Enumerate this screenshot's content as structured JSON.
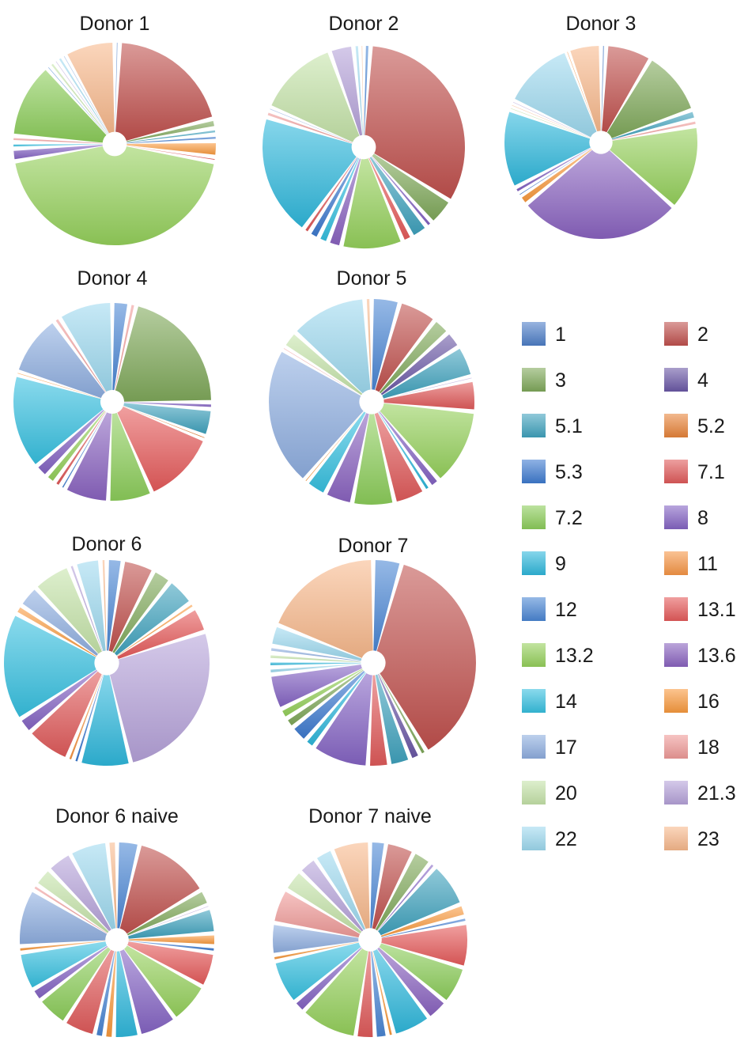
{
  "chart_data": {
    "type": "pie",
    "categories": [
      "1",
      "2",
      "3",
      "4",
      "5.1",
      "5.2",
      "5.3",
      "7.1",
      "7.2",
      "8",
      "9",
      "11",
      "12",
      "13.1",
      "13.2",
      "13.6",
      "14",
      "16",
      "17",
      "18",
      "20",
      "21.3",
      "22",
      "23"
    ],
    "colors": {
      "1": "#4d7ec7",
      "2": "#c0504d",
      "3": "#7fa85a",
      "4": "#6b58a6",
      "5.1": "#3fa2bd",
      "5.2": "#e8843a",
      "5.3": "#3e7bd0",
      "7.1": "#e05a5a",
      "7.2": "#8ccd5a",
      "8": "#8564c4",
      "9": "#2fb8dc",
      "11": "#f79646",
      "12": "#4a86d4",
      "13.1": "#e55a5a",
      "13.2": "#95d15b",
      "13.6": "#8a63c0",
      "14": "#36c0e0",
      "16": "#f99a3e",
      "17": "#8eaee0",
      "18": "#ef9a98",
      "20": "#c5e3a8",
      "21.3": "#b5a2d9",
      "22": "#9ed9ef",
      "23": "#f8b98c"
    },
    "legend": {
      "placement": "right",
      "entries": [
        "1",
        "2",
        "3",
        "4",
        "5.1",
        "5.2",
        "5.3",
        "7.1",
        "7.2",
        "8",
        "9",
        "11",
        "12",
        "13.1",
        "13.2",
        "13.6",
        "14",
        "16",
        "17",
        "18",
        "20",
        "21.3",
        "22",
        "23"
      ]
    },
    "pies": [
      {
        "title": "Donor 1",
        "slices": [
          {
            "label": "1",
            "value": 0.8
          },
          {
            "label": "2",
            "value": 20
          },
          {
            "label": "3",
            "value": 1.5
          },
          {
            "label": "5.1",
            "value": 1
          },
          {
            "label": "5.3",
            "value": 1
          },
          {
            "label": "16",
            "value": 2.5
          },
          {
            "label": "13.1",
            "value": 0.8
          },
          {
            "label": "13.2",
            "value": 44
          },
          {
            "label": "8",
            "value": 2
          },
          {
            "label": "14",
            "value": 1
          },
          {
            "label": "18",
            "value": 1
          },
          {
            "label": "7.2",
            "value": 12
          },
          {
            "label": "12",
            "value": 0.5
          },
          {
            "label": "20",
            "value": 1
          },
          {
            "label": "21.3",
            "value": 0.5
          },
          {
            "label": "22",
            "value": 1
          },
          {
            "label": "17",
            "value": 0.5
          },
          {
            "label": "23",
            "value": 8
          }
        ]
      },
      {
        "title": "Donor 2",
        "slices": [
          {
            "label": "12",
            "value": 1
          },
          {
            "label": "2",
            "value": 30
          },
          {
            "label": "3",
            "value": 4
          },
          {
            "label": "8",
            "value": 1
          },
          {
            "label": "5.1",
            "value": 2.5
          },
          {
            "label": "13.1",
            "value": 1.5
          },
          {
            "label": "13.2",
            "value": 9
          },
          {
            "label": "13.6",
            "value": 2
          },
          {
            "label": "14",
            "value": 1.5
          },
          {
            "label": "5.3",
            "value": 1.5
          },
          {
            "label": "7.1",
            "value": 1
          },
          {
            "label": "9",
            "value": 18
          },
          {
            "label": "18",
            "value": 1
          },
          {
            "label": "17",
            "value": 0.5
          },
          {
            "label": "20",
            "value": 12
          },
          {
            "label": "21.3",
            "value": 3.5
          },
          {
            "label": "22",
            "value": 1
          },
          {
            "label": "23",
            "value": 0.5
          }
        ]
      },
      {
        "title": "Donor 3",
        "slices": [
          {
            "label": "1",
            "value": 0.8
          },
          {
            "label": "2",
            "value": 7
          },
          {
            "label": "3",
            "value": 10
          },
          {
            "label": "5.1",
            "value": 1.5
          },
          {
            "label": "18",
            "value": 1
          },
          {
            "label": "13.2",
            "value": 13
          },
          {
            "label": "13.6",
            "value": 25
          },
          {
            "label": "16",
            "value": 1.5
          },
          {
            "label": "5.3",
            "value": 0.5
          },
          {
            "label": "8",
            "value": 1
          },
          {
            "label": "9",
            "value": 12
          },
          {
            "label": "20",
            "value": 0.5
          },
          {
            "label": "23",
            "value": 0.5
          },
          {
            "label": "21.3",
            "value": 0.5
          },
          {
            "label": "22",
            "value": 11
          },
          {
            "label": "11",
            "value": 0.3
          },
          {
            "label": "23",
            "value": 5
          }
        ]
      },
      {
        "title": "Donor 4",
        "slices": [
          {
            "label": "12",
            "value": 2.5
          },
          {
            "label": "18",
            "value": 1
          },
          {
            "label": "3",
            "value": 19
          },
          {
            "label": "8",
            "value": 1
          },
          {
            "label": "5.1",
            "value": 4
          },
          {
            "label": "5.2",
            "value": 0.5
          },
          {
            "label": "13.1",
            "value": 11
          },
          {
            "label": "7.2",
            "value": 6.5
          },
          {
            "label": "13.6",
            "value": 6.5
          },
          {
            "label": "12",
            "value": 0.8
          },
          {
            "label": "7.1",
            "value": 1
          },
          {
            "label": "13.2",
            "value": 1.5
          },
          {
            "label": "8",
            "value": 2
          },
          {
            "label": "14",
            "value": 14
          },
          {
            "label": "16",
            "value": 0.5
          },
          {
            "label": "17",
            "value": 9
          },
          {
            "label": "18",
            "value": 1
          },
          {
            "label": "22",
            "value": 8
          }
        ]
      },
      {
        "title": "Donor 5",
        "slices": [
          {
            "label": "12",
            "value": 4
          },
          {
            "label": "2",
            "value": 5.5
          },
          {
            "label": "3",
            "value": 2.5
          },
          {
            "label": "4",
            "value": 2.5
          },
          {
            "label": "5.1",
            "value": 4.5
          },
          {
            "label": "21.3",
            "value": 0.5
          },
          {
            "label": "7.1",
            "value": 4.5
          },
          {
            "label": "13.2",
            "value": 11
          },
          {
            "label": "8",
            "value": 1.5
          },
          {
            "label": "9",
            "value": 1
          },
          {
            "label": "7.1",
            "value": 4.5
          },
          {
            "label": "7.2",
            "value": 6
          },
          {
            "label": "13.6",
            "value": 4
          },
          {
            "label": "14",
            "value": 3
          },
          {
            "label": "16",
            "value": 0.5
          },
          {
            "label": "17",
            "value": 20
          },
          {
            "label": "18",
            "value": 0.5
          },
          {
            "label": "20",
            "value": 2.5
          },
          {
            "label": "22",
            "value": 11
          },
          {
            "label": "23",
            "value": 1
          }
        ]
      },
      {
        "title": "Donor 6",
        "slices": [
          {
            "label": "12",
            "value": 2.5
          },
          {
            "label": "2",
            "value": 5
          },
          {
            "label": "3",
            "value": 3
          },
          {
            "label": "5.1",
            "value": 4.5
          },
          {
            "label": "16",
            "value": 1
          },
          {
            "label": "13.1",
            "value": 4
          },
          {
            "label": "21.3",
            "value": 26
          },
          {
            "label": "9",
            "value": 8
          },
          {
            "label": "5.3",
            "value": 1
          },
          {
            "label": "11",
            "value": 1
          },
          {
            "label": "7.1",
            "value": 7
          },
          {
            "label": "8",
            "value": 2.5
          },
          {
            "label": "14",
            "value": 17
          },
          {
            "label": "16",
            "value": 1.5
          },
          {
            "label": "17",
            "value": 3.5
          },
          {
            "label": "20",
            "value": 6
          },
          {
            "label": "21.3",
            "value": 1
          },
          {
            "label": "22",
            "value": 4
          },
          {
            "label": "23",
            "value": 1
          }
        ]
      },
      {
        "title": "Donor 7",
        "slices": [
          {
            "label": "12",
            "value": 4
          },
          {
            "label": "2",
            "value": 33
          },
          {
            "label": "3",
            "value": 1
          },
          {
            "label": "4",
            "value": 1.5
          },
          {
            "label": "5.1",
            "value": 3
          },
          {
            "label": "7.1",
            "value": 3
          },
          {
            "label": "8",
            "value": 8
          },
          {
            "label": "9",
            "value": 1.5
          },
          {
            "label": "5.3",
            "value": 2.5
          },
          {
            "label": "3",
            "value": 1.5
          },
          {
            "label": "13.2",
            "value": 1.5
          },
          {
            "label": "8",
            "value": 5
          },
          {
            "label": "22",
            "value": 1
          },
          {
            "label": "9",
            "value": 1
          },
          {
            "label": "20",
            "value": 1
          },
          {
            "label": "17",
            "value": 1
          },
          {
            "label": "22",
            "value": 3
          },
          {
            "label": "23",
            "value": 17
          }
        ]
      },
      {
        "title": "Donor 6 naive",
        "slices": [
          {
            "label": "12",
            "value": 3.5
          },
          {
            "label": "2",
            "value": 12
          },
          {
            "label": "3",
            "value": 2.5
          },
          {
            "label": "21.3",
            "value": 0.5
          },
          {
            "label": "5.1",
            "value": 4
          },
          {
            "label": "16",
            "value": 2
          },
          {
            "label": "5.3",
            "value": 1
          },
          {
            "label": "13.1",
            "value": 5.5
          },
          {
            "label": "13.2",
            "value": 6.5
          },
          {
            "label": "8",
            "value": 6
          },
          {
            "label": "9",
            "value": 4
          },
          {
            "label": "16",
            "value": 1.5
          },
          {
            "label": "12",
            "value": 1.5
          },
          {
            "label": "7.1",
            "value": 5
          },
          {
            "label": "7.2",
            "value": 5
          },
          {
            "label": "8",
            "value": 2
          },
          {
            "label": "14",
            "value": 6
          },
          {
            "label": "16",
            "value": 1
          },
          {
            "label": "17",
            "value": 9
          },
          {
            "label": "18",
            "value": 1
          },
          {
            "label": "20",
            "value": 3
          },
          {
            "label": "21.3",
            "value": 4
          },
          {
            "label": "22",
            "value": 6
          },
          {
            "label": "23",
            "value": 1.5
          }
        ]
      },
      {
        "title": "Donor 7 naive",
        "slices": [
          {
            "label": "12",
            "value": 2.5
          },
          {
            "label": "2",
            "value": 4.5
          },
          {
            "label": "3",
            "value": 3
          },
          {
            "label": "8",
            "value": 1
          },
          {
            "label": "5.1",
            "value": 7
          },
          {
            "label": "16",
            "value": 2
          },
          {
            "label": "5.3",
            "value": 1
          },
          {
            "label": "13.1",
            "value": 7
          },
          {
            "label": "7.2",
            "value": 6
          },
          {
            "label": "13.6",
            "value": 3.5
          },
          {
            "label": "9",
            "value": 6
          },
          {
            "label": "16",
            "value": 1
          },
          {
            "label": "12",
            "value": 2
          },
          {
            "label": "7.1",
            "value": 3
          },
          {
            "label": "13.2",
            "value": 9
          },
          {
            "label": "8",
            "value": 2
          },
          {
            "label": "14",
            "value": 7
          },
          {
            "label": "16",
            "value": 1
          },
          {
            "label": "17",
            "value": 5
          },
          {
            "label": "18",
            "value": 5.5
          },
          {
            "label": "20",
            "value": 3.5
          },
          {
            "label": "21.3",
            "value": 3
          },
          {
            "label": "22",
            "value": 3
          },
          {
            "label": "23",
            "value": 6
          }
        ]
      }
    ]
  }
}
